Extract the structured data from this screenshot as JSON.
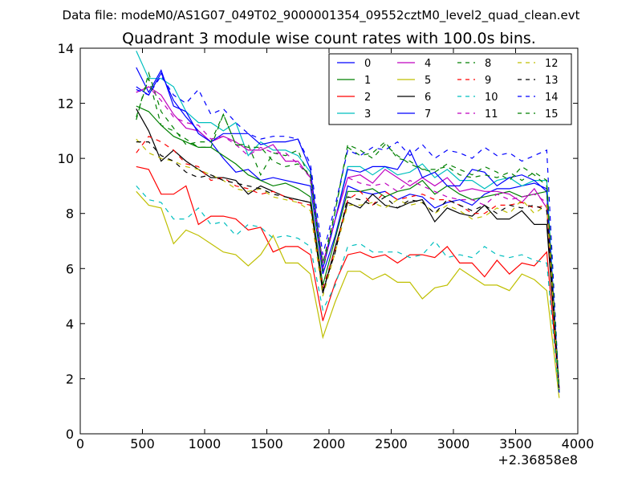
{
  "header": {
    "file_label": "Data file: modeM0/AS1G07_049T02_9000001354_09552cztM0_level2_quad_clean.evt"
  },
  "chart_data": {
    "type": "line",
    "title": "Quadrant 3 module wise count rates with 100.0s bins.",
    "xlabel": "",
    "ylabel": "",
    "x_offset_label": "+2.36858e8",
    "xlim": [
      0,
      4000
    ],
    "ylim": [
      0,
      14
    ],
    "x_ticks": [
      0,
      500,
      1000,
      1500,
      2000,
      2500,
      3000,
      3500,
      4000
    ],
    "y_ticks": [
      0,
      2,
      4,
      6,
      8,
      10,
      12,
      14
    ],
    "grid": false,
    "legend_position": "top-right",
    "x": [
      450,
      550,
      650,
      750,
      850,
      950,
      1050,
      1150,
      1250,
      1350,
      1450,
      1550,
      1650,
      1750,
      1850,
      1950,
      2050,
      2150,
      2250,
      2350,
      2450,
      2550,
      2650,
      2750,
      2850,
      2950,
      3050,
      3150,
      3250,
      3350,
      3450,
      3550,
      3650,
      3750,
      3850
    ],
    "series": [
      {
        "name": "0",
        "color": "#0000ff",
        "dash": "solid",
        "values": [
          12.6,
          12.3,
          13.1,
          12.1,
          11.5,
          11.0,
          10.6,
          10.0,
          9.5,
          9.6,
          9.2,
          9.3,
          9.2,
          9.1,
          9.0,
          5.8,
          7.2,
          9.0,
          8.8,
          8.7,
          8.8,
          8.5,
          8.7,
          8.6,
          8.2,
          8.4,
          8.5,
          8.3,
          8.7,
          8.9,
          8.9,
          9.0,
          9.1,
          8.9,
          1.5
        ]
      },
      {
        "name": "1",
        "color": "#008000",
        "dash": "solid",
        "values": [
          11.9,
          11.7,
          11.2,
          10.8,
          10.6,
          10.4,
          10.4,
          10.1,
          9.8,
          9.4,
          9.2,
          9.0,
          9.1,
          8.9,
          8.6,
          5.4,
          7.1,
          8.8,
          8.8,
          8.9,
          8.6,
          8.8,
          8.9,
          9.2,
          8.7,
          9.0,
          8.7,
          8.5,
          8.6,
          8.7,
          8.8,
          8.6,
          8.7,
          8.8,
          1.6
        ]
      },
      {
        "name": "2",
        "color": "#ff0000",
        "dash": "solid",
        "values": [
          9.7,
          9.6,
          8.7,
          8.7,
          9.0,
          7.6,
          7.9,
          7.9,
          7.8,
          7.4,
          7.5,
          6.6,
          6.8,
          6.8,
          6.5,
          4.1,
          5.5,
          6.5,
          6.6,
          6.4,
          6.5,
          6.2,
          6.5,
          6.5,
          6.4,
          6.8,
          6.2,
          6.2,
          5.7,
          6.3,
          5.8,
          6.2,
          6.1,
          6.6,
          1.6
        ]
      },
      {
        "name": "3",
        "color": "#00bfbf",
        "dash": "solid",
        "values": [
          13.9,
          12.9,
          12.9,
          12.6,
          11.7,
          11.3,
          11.3,
          11.0,
          11.3,
          10.1,
          10.6,
          10.3,
          10.3,
          10.1,
          9.5,
          6.0,
          7.8,
          9.7,
          9.7,
          9.4,
          9.7,
          9.4,
          9.5,
          9.8,
          9.3,
          9.6,
          9.2,
          9.2,
          8.9,
          9.2,
          9.3,
          9.0,
          9.2,
          9.2,
          1.5
        ]
      },
      {
        "name": "4",
        "color": "#bf00bf",
        "dash": "solid",
        "values": [
          12.4,
          12.6,
          12.3,
          11.6,
          11.1,
          11.0,
          10.6,
          10.8,
          10.6,
          10.3,
          10.3,
          10.5,
          9.9,
          9.9,
          9.3,
          6.2,
          7.8,
          9.3,
          9.4,
          9.1,
          9.6,
          9.3,
          9.0,
          9.3,
          9.0,
          9.3,
          8.8,
          8.9,
          8.8,
          8.8,
          8.7,
          8.4,
          8.9,
          8.2,
          1.6
        ]
      },
      {
        "name": "5",
        "color": "#bfbf00",
        "dash": "solid",
        "values": [
          8.8,
          8.3,
          8.2,
          6.9,
          7.4,
          7.2,
          6.9,
          6.6,
          6.5,
          6.1,
          6.5,
          7.2,
          6.2,
          6.2,
          5.8,
          3.5,
          4.8,
          5.9,
          5.9,
          5.6,
          5.8,
          5.5,
          5.5,
          4.9,
          5.3,
          5.4,
          6.0,
          5.7,
          5.4,
          5.4,
          5.2,
          5.8,
          5.6,
          5.2,
          1.3
        ]
      },
      {
        "name": "6",
        "color": "#000000",
        "dash": "solid",
        "values": [
          11.8,
          11.0,
          9.9,
          10.3,
          9.9,
          9.6,
          9.3,
          9.3,
          9.2,
          8.7,
          9.0,
          8.8,
          8.6,
          8.5,
          8.4,
          5.1,
          6.8,
          8.4,
          8.2,
          8.7,
          8.3,
          8.2,
          8.4,
          8.5,
          7.7,
          8.2,
          8.0,
          7.9,
          8.3,
          7.8,
          7.8,
          8.1,
          7.6,
          7.6,
          1.6
        ]
      },
      {
        "name": "7",
        "color": "#0000ff",
        "dash": "solid",
        "values": [
          13.3,
          12.4,
          13.2,
          11.9,
          11.7,
          10.9,
          10.6,
          10.9,
          10.9,
          10.9,
          10.5,
          10.6,
          10.6,
          10.7,
          9.6,
          6.0,
          7.8,
          9.6,
          9.5,
          9.7,
          9.7,
          9.6,
          10.3,
          9.3,
          9.5,
          9.0,
          9.0,
          9.6,
          9.5,
          9.0,
          9.3,
          9.4,
          9.2,
          8.8,
          1.6
        ]
      },
      {
        "name": "8",
        "color": "#008000",
        "dash": "dashed",
        "values": [
          11.4,
          13.1,
          11.7,
          11.1,
          10.5,
          10.6,
          10.6,
          11.6,
          10.5,
          10.5,
          9.4,
          10.2,
          10.1,
          10.3,
          9.2,
          6.2,
          8.1,
          10.4,
          10.1,
          10.2,
          10.6,
          10.0,
          9.9,
          9.6,
          9.5,
          9.8,
          9.6,
          9.4,
          9.7,
          9.5,
          9.2,
          9.7,
          9.4,
          9.0,
          1.5
        ]
      },
      {
        "name": "9",
        "color": "#ff0000",
        "dash": "dashed",
        "values": [
          10.2,
          10.8,
          10.6,
          10.3,
          9.8,
          9.7,
          9.2,
          9.3,
          9.0,
          8.9,
          8.7,
          8.8,
          8.6,
          8.4,
          8.3,
          5.3,
          6.7,
          8.5,
          8.8,
          8.3,
          8.8,
          8.5,
          8.6,
          8.7,
          8.5,
          8.5,
          8.3,
          8.0,
          8.0,
          8.3,
          8.3,
          8.4,
          8.2,
          8.3,
          1.7
        ]
      },
      {
        "name": "10",
        "color": "#00bfbf",
        "dash": "dashed",
        "values": [
          9.0,
          8.5,
          8.4,
          7.8,
          7.8,
          8.2,
          7.6,
          7.7,
          7.2,
          7.6,
          7.5,
          7.1,
          7.2,
          7.1,
          6.8,
          4.5,
          5.4,
          6.8,
          6.9,
          6.6,
          6.6,
          6.6,
          6.4,
          6.5,
          7.0,
          6.4,
          6.5,
          6.4,
          6.8,
          6.5,
          6.4,
          6.5,
          6.3,
          6.2,
          1.4
        ]
      },
      {
        "name": "11",
        "color": "#bf00bf",
        "dash": "dashed",
        "values": [
          12.4,
          12.6,
          12.1,
          11.5,
          11.3,
          11.2,
          10.7,
          10.8,
          10.5,
          10.1,
          10.4,
          10.2,
          10.2,
          9.8,
          9.3,
          6.0,
          7.8,
          9.3,
          9.1,
          9.0,
          9.1,
          8.8,
          9.2,
          9.0,
          8.8,
          8.6,
          8.5,
          8.5,
          8.3,
          8.7,
          8.5,
          8.6,
          8.7,
          8.4,
          1.6
        ]
      },
      {
        "name": "12",
        "color": "#bfbf00",
        "dash": "dashed",
        "values": [
          10.7,
          10.2,
          10.0,
          9.9,
          9.7,
          9.6,
          9.4,
          9.2,
          8.9,
          8.8,
          8.9,
          8.6,
          8.5,
          8.4,
          8.1,
          5.0,
          6.6,
          8.3,
          8.3,
          8.4,
          8.2,
          8.5,
          8.3,
          8.4,
          8.0,
          8.3,
          8.1,
          7.8,
          7.9,
          8.2,
          8.0,
          8.5,
          8.0,
          8.3,
          1.5
        ]
      },
      {
        "name": "13",
        "color": "#000000",
        "dash": "dashed",
        "values": [
          10.6,
          10.6,
          10.1,
          9.9,
          9.5,
          9.3,
          9.4,
          9.2,
          9.1,
          9.0,
          8.9,
          8.7,
          8.6,
          8.5,
          8.4,
          5.2,
          6.6,
          8.6,
          8.5,
          8.3,
          8.6,
          8.2,
          8.5,
          8.4,
          8.0,
          8.5,
          8.3,
          8.1,
          8.3,
          8.0,
          8.3,
          8.2,
          8.3,
          8.1,
          1.5
        ]
      },
      {
        "name": "14",
        "color": "#0000ff",
        "dash": "dashed",
        "values": [
          12.5,
          12.3,
          13.0,
          12.3,
          12.0,
          12.5,
          11.6,
          11.8,
          11.3,
          10.9,
          10.7,
          10.8,
          10.8,
          10.7,
          9.8,
          6.5,
          8.3,
          10.3,
          10.1,
          10.4,
          10.3,
          10.6,
          10.1,
          10.5,
          10.0,
          10.3,
          10.2,
          10.0,
          10.4,
          10.1,
          10.2,
          9.9,
          10.1,
          10.3,
          1.5
        ]
      },
      {
        "name": "15",
        "color": "#008000",
        "dash": "dashed",
        "values": [
          11.5,
          12.9,
          11.2,
          11.0,
          10.7,
          10.4,
          10.4,
          11.6,
          10.5,
          10.4,
          10.4,
          9.9,
          9.7,
          9.8,
          9.4,
          5.9,
          8.1,
          10.5,
          10.3,
          10.0,
          10.5,
          10.1,
          9.8,
          9.6,
          9.6,
          9.7,
          9.4,
          9.3,
          9.4,
          9.3,
          9.5,
          9.2,
          9.5,
          9.2,
          1.6
        ]
      }
    ]
  }
}
